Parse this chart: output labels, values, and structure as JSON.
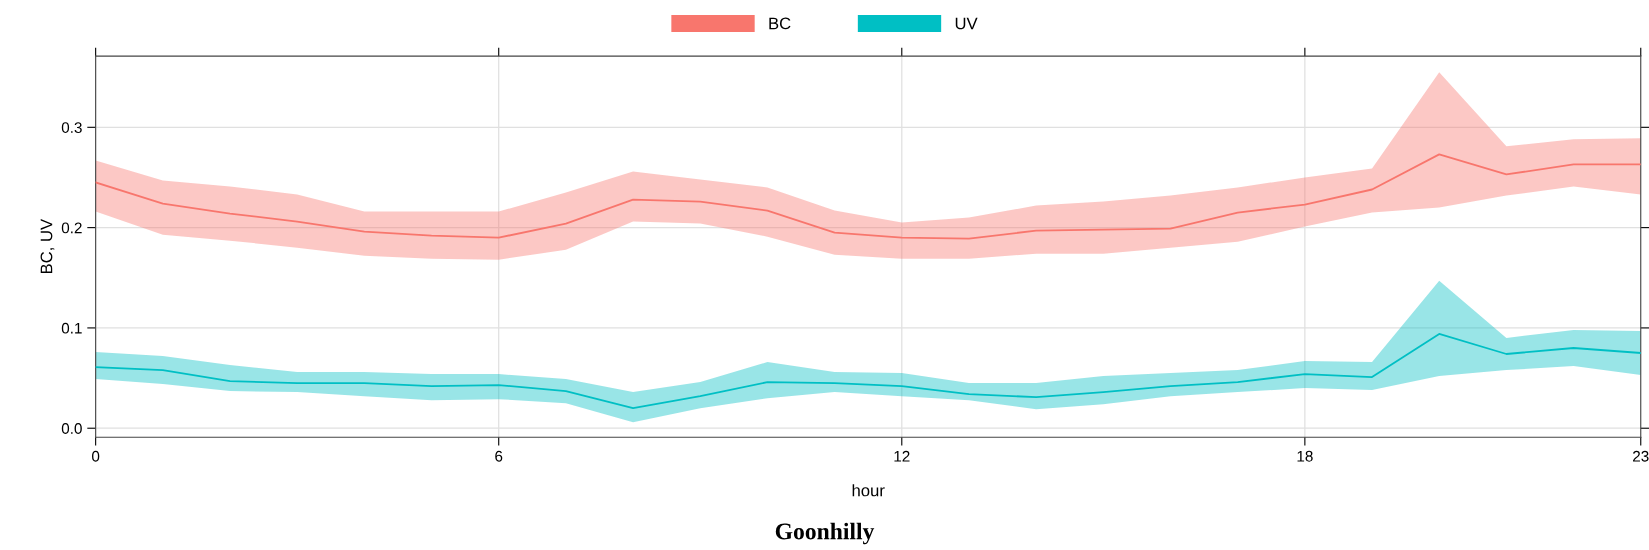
{
  "chart_data": {
    "type": "line",
    "title": "Goonhilly",
    "xlabel": "hour",
    "ylabel": "BC, UV",
    "x": [
      0,
      1,
      2,
      3,
      4,
      5,
      6,
      7,
      8,
      9,
      10,
      11,
      12,
      13,
      14,
      15,
      16,
      17,
      18,
      19,
      20,
      21,
      22,
      23
    ],
    "series": [
      {
        "name": "BC",
        "color": "#f8766d",
        "values": [
          0.245,
          0.224,
          0.214,
          0.206,
          0.196,
          0.192,
          0.19,
          0.204,
          0.228,
          0.226,
          0.217,
          0.195,
          0.19,
          0.189,
          0.197,
          0.198,
          0.199,
          0.215,
          0.223,
          0.238,
          0.273,
          0.253,
          0.263,
          0.263
        ],
        "upper": [
          0.267,
          0.247,
          0.241,
          0.233,
          0.216,
          0.216,
          0.216,
          0.235,
          0.256,
          0.248,
          0.24,
          0.217,
          0.205,
          0.21,
          0.222,
          0.226,
          0.232,
          0.24,
          0.25,
          0.259,
          0.355,
          0.281,
          0.288,
          0.289
        ],
        "lower": [
          0.216,
          0.193,
          0.187,
          0.18,
          0.172,
          0.169,
          0.168,
          0.178,
          0.206,
          0.204,
          0.191,
          0.173,
          0.169,
          0.169,
          0.174,
          0.174,
          0.18,
          0.186,
          0.201,
          0.215,
          0.22,
          0.232,
          0.241,
          0.233
        ]
      },
      {
        "name": "UV",
        "color": "#00bfc4",
        "values": [
          0.061,
          0.058,
          0.047,
          0.045,
          0.045,
          0.042,
          0.043,
          0.037,
          0.02,
          0.032,
          0.046,
          0.045,
          0.042,
          0.034,
          0.031,
          0.036,
          0.042,
          0.046,
          0.054,
          0.051,
          0.094,
          0.074,
          0.08,
          0.075
        ],
        "upper": [
          0.076,
          0.072,
          0.063,
          0.056,
          0.056,
          0.054,
          0.054,
          0.049,
          0.036,
          0.046,
          0.066,
          0.056,
          0.055,
          0.045,
          0.045,
          0.052,
          0.055,
          0.058,
          0.067,
          0.066,
          0.147,
          0.09,
          0.098,
          0.097
        ],
        "lower": [
          0.049,
          0.044,
          0.037,
          0.036,
          0.032,
          0.028,
          0.029,
          0.025,
          0.006,
          0.02,
          0.03,
          0.036,
          0.032,
          0.028,
          0.019,
          0.024,
          0.032,
          0.036,
          0.04,
          0.038,
          0.052,
          0.058,
          0.062,
          0.053
        ]
      }
    ],
    "xlim": [
      0,
      23
    ],
    "xticks": [
      0,
      6,
      12,
      18,
      23
    ],
    "ylim": [
      -0.009,
      0.371
    ],
    "yticks": [
      {
        "value": 0,
        "label": "0.0"
      },
      0.1,
      0.2,
      0.3
    ],
    "grid": true,
    "legend": "top",
    "marker": "none",
    "line_style": "solid"
  }
}
